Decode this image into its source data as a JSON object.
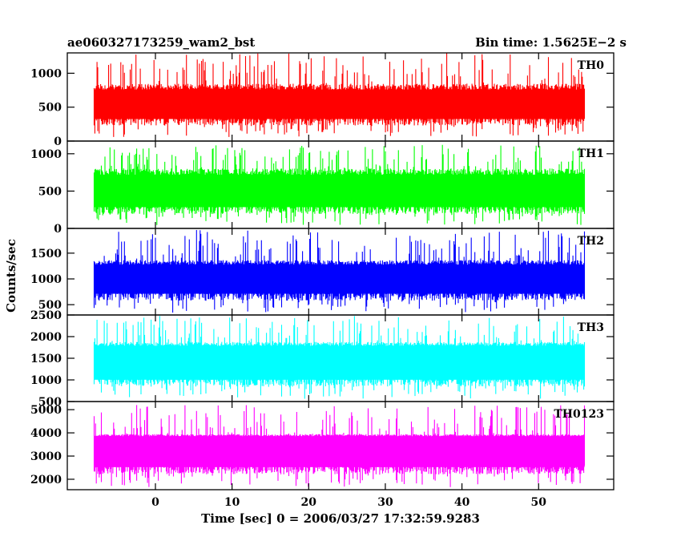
{
  "header": {
    "title_left": "ae060327173259_wam2_bst",
    "title_right": "Bin time: 1.5625E−2 s"
  },
  "chart_data": {
    "type": "line",
    "title": "ae060327173259_wam2_bst",
    "subtitle": "Bin time: 1.5625E−2 s",
    "xlabel": "Time [sec] 0 = 2006/03/27 17:32:59.9283",
    "ylabel": "Counts/sec",
    "xlim": [
      -11.5,
      59.8
    ],
    "x_range": [
      -8,
      56
    ],
    "x_ticks": [
      0,
      10,
      20,
      30,
      40,
      50
    ],
    "grid": false,
    "panels": [
      {
        "name": "TH0",
        "color": "#ff0000",
        "ylim": [
          0,
          1300
        ],
        "yticks": [
          0,
          500,
          1000
        ],
        "typical_low": 300,
        "typical_high": 800,
        "min": 60,
        "max": 1300,
        "noise_seed": 11
      },
      {
        "name": "TH1",
        "color": "#00ff00",
        "ylim": [
          0,
          1170
        ],
        "yticks": [
          0,
          500,
          1000
        ],
        "typical_low": 260,
        "typical_high": 760,
        "min": 40,
        "max": 1120,
        "noise_seed": 23
      },
      {
        "name": "TH2",
        "color": "#0000ff",
        "ylim": [
          300,
          1980
        ],
        "yticks": [
          500,
          1000,
          1500
        ],
        "typical_low": 680,
        "typical_high": 1320,
        "min": 340,
        "max": 1950,
        "noise_seed": 37
      },
      {
        "name": "TH3",
        "color": "#00ffff",
        "ylim": [
          500,
          2500
        ],
        "yticks": [
          500,
          1000,
          1500,
          2000,
          2500
        ],
        "typical_low": 960,
        "typical_high": 1830,
        "min": 560,
        "max": 2480,
        "noise_seed": 41
      },
      {
        "name": "TH0123",
        "color": "#ff00ff",
        "ylim": [
          1550,
          5350
        ],
        "yticks": [
          2000,
          3000,
          4000,
          5000
        ],
        "typical_low": 2450,
        "typical_high": 3900,
        "min": 1650,
        "max": 5200,
        "noise_seed": 53
      }
    ]
  }
}
